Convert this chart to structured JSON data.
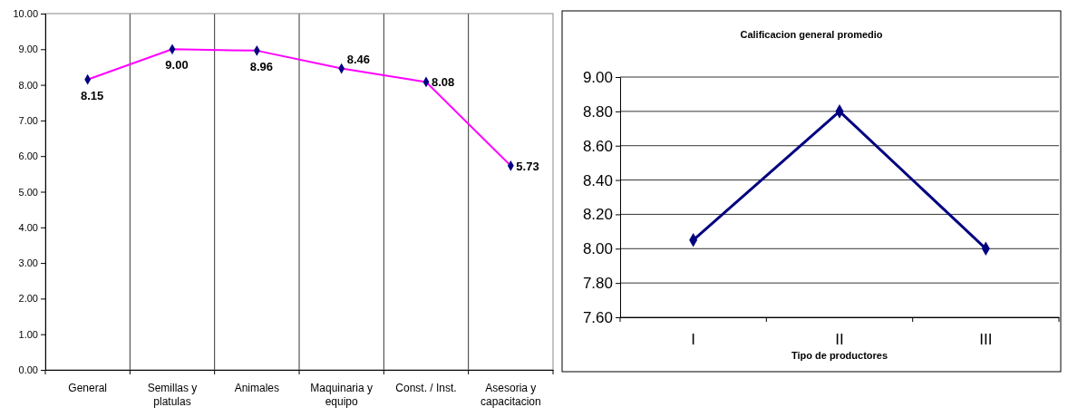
{
  "chart_data": [
    {
      "type": "line",
      "categories": [
        "General",
        "Semillas y platulas",
        "Animales",
        "Maquinaria y equipo",
        "Const. / Inst.",
        "Asesoria y capacitacion"
      ],
      "series": [
        {
          "color": "#ff00ff",
          "values": [
            8.15,
            9.0,
            8.96,
            8.46,
            8.08,
            5.73
          ]
        }
      ],
      "ylim": [
        0,
        10
      ],
      "yticks": [
        {
          "value": 0,
          "label": "0.00"
        },
        {
          "value": 1,
          "label": "1.00"
        },
        {
          "value": 2,
          "label": "2.00"
        },
        {
          "value": 3,
          "label": "3.00"
        },
        {
          "value": 4,
          "label": "4.00"
        },
        {
          "value": 5,
          "label": "5.00"
        },
        {
          "value": 6,
          "label": "6.00"
        },
        {
          "value": 7,
          "label": "7.00"
        },
        {
          "value": 8,
          "label": "8.00"
        },
        {
          "value": 9,
          "label": "9.00"
        },
        {
          "value": 10,
          "label": "10.00"
        }
      ],
      "grid": "x",
      "marker": "diamond",
      "value_labels": [
        "8.15",
        "9.00",
        "8.96",
        "8.46",
        "8.08",
        "5.73"
      ]
    },
    {
      "type": "line",
      "title": "Calificacion general promedio",
      "xlabel": "Tipo de productores",
      "categories": [
        "I",
        "II",
        "III"
      ],
      "series": [
        {
          "color": "#000080",
          "values": [
            8.05,
            8.8,
            8.0
          ]
        }
      ],
      "ylim": [
        7.6,
        9.0
      ],
      "yticks": [
        {
          "value": 7.6,
          "label": "7.60"
        },
        {
          "value": 7.8,
          "label": "7.80"
        },
        {
          "value": 8.0,
          "label": "8.00"
        },
        {
          "value": 8.2,
          "label": "8.20"
        },
        {
          "value": 8.4,
          "label": "8.40"
        },
        {
          "value": 8.6,
          "label": "8.60"
        },
        {
          "value": 8.8,
          "label": "8.80"
        },
        {
          "value": 9.0,
          "label": "9.00"
        }
      ],
      "grid": "y",
      "marker": "diamond"
    }
  ]
}
